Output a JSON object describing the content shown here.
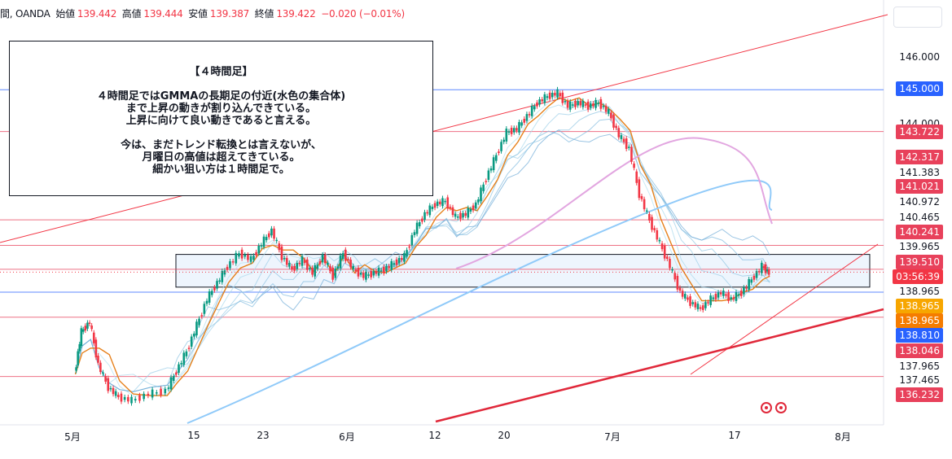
{
  "header": {
    "symbol": "間, OANDA",
    "open_label": "始値",
    "open": "139.442",
    "high_label": "高値",
    "high": "139.444",
    "low_label": "安値",
    "low": "139.387",
    "close_label": "終値",
    "close": "139.422",
    "change": "−0.020 (−0.01%)"
  },
  "annotation": {
    "title": "【４時間足】",
    "para1": [
      "４時間足ではGMMAの長期足の付近(水色の集合体)",
      "まで上昇の動きが割り込んできている。",
      "上昇に向けて良い動きであると言える。"
    ],
    "para2": [
      "今は、まだトレンド転換とは言えないが、",
      "月曜日の高値は超えてきている。",
      "細かい狙い方は１時間足で。"
    ]
  },
  "countdown": "03:56:39",
  "icons": {
    "events": "event-marker-icon"
  },
  "chart_data": {
    "type": "line",
    "series_color_up": "#089981",
    "series_color_down": "#f23645",
    "x_ticks": [
      "5月",
      "15",
      "23",
      "6月",
      "12",
      "20",
      "7月",
      "17",
      "8月"
    ],
    "y_axis_labels": [
      {
        "value": "146.000",
        "style": "plain"
      },
      {
        "value": "145.000",
        "style": "badge",
        "color": "#2962ff"
      },
      {
        "value": "144.000",
        "style": "plain"
      },
      {
        "value": "143.722",
        "style": "badge",
        "color": "#e8415b"
      },
      {
        "value": "142.317",
        "style": "badge",
        "color": "#e8415b"
      },
      {
        "value": "141.383",
        "style": "plain"
      },
      {
        "value": "141.021",
        "style": "badge",
        "color": "#e8415b"
      },
      {
        "value": "140.972",
        "style": "plain"
      },
      {
        "value": "140.465",
        "style": "plain"
      },
      {
        "value": "140.241",
        "style": "badge",
        "color": "#e8415b"
      },
      {
        "value": "139.965",
        "style": "plain"
      },
      {
        "value": "139.510",
        "style": "badge",
        "color": "#e8415b"
      },
      {
        "value": "138.965",
        "style": "plain"
      },
      {
        "value": "138.965",
        "style": "badge",
        "color": "#f7a600"
      },
      {
        "value": "138.965",
        "style": "badge",
        "color": "#f57c00"
      },
      {
        "value": "138.810",
        "style": "badge",
        "color": "#2962ff"
      },
      {
        "value": "138.046",
        "style": "badge",
        "color": "#e8415b"
      },
      {
        "value": "137.965",
        "style": "plain"
      },
      {
        "value": "137.465",
        "style": "plain"
      },
      {
        "value": "136.232",
        "style": "badge",
        "color": "#e8415b"
      }
    ],
    "horizontal_levels": [
      {
        "value": 145.0,
        "color": "#2962ff"
      },
      {
        "value": 143.722,
        "color": "#e8415b"
      },
      {
        "value": 141.021,
        "color": "#e8415b"
      },
      {
        "value": 140.241,
        "color": "#e8415b"
      },
      {
        "value": 139.51,
        "color": "#e8415b"
      },
      {
        "value": 138.81,
        "color": "#2962ff"
      },
      {
        "value": 138.046,
        "color": "#e8415b"
      },
      {
        "value": 136.232,
        "color": "#e8415b"
      }
    ],
    "zone": {
      "top": 139.965,
      "bottom": 138.965
    },
    "price_path": [
      [
        0.6,
        136.3
      ],
      [
        1.0,
        137.6
      ],
      [
        1.5,
        137.9
      ],
      [
        2.0,
        136.6
      ],
      [
        2.6,
        135.9
      ],
      [
        3.2,
        135.6
      ],
      [
        4.0,
        135.5
      ],
      [
        5.0,
        135.7
      ],
      [
        6.0,
        135.8
      ],
      [
        6.6,
        136.4
      ],
      [
        7.2,
        137.0
      ],
      [
        7.8,
        137.8
      ],
      [
        8.4,
        138.6
      ],
      [
        9.0,
        139.1
      ],
      [
        9.6,
        139.6
      ],
      [
        10.3,
        140.0
      ],
      [
        11.0,
        139.8
      ],
      [
        11.6,
        140.3
      ],
      [
        12.2,
        140.7
      ],
      [
        12.8,
        139.9
      ],
      [
        13.4,
        139.5
      ],
      [
        14.0,
        139.8
      ],
      [
        14.6,
        139.4
      ],
      [
        15.2,
        139.9
      ],
      [
        15.8,
        139.3
      ],
      [
        16.4,
        140.0
      ],
      [
        17.0,
        139.5
      ],
      [
        17.6,
        139.3
      ],
      [
        18.2,
        139.4
      ],
      [
        18.8,
        139.5
      ],
      [
        19.4,
        139.7
      ],
      [
        20.0,
        139.9
      ],
      [
        20.6,
        140.7
      ],
      [
        21.2,
        141.2
      ],
      [
        21.8,
        141.5
      ],
      [
        22.4,
        141.6
      ],
      [
        23.0,
        141.1
      ],
      [
        23.6,
        141.2
      ],
      [
        24.2,
        141.5
      ],
      [
        24.8,
        142.3
      ],
      [
        25.4,
        143.0
      ],
      [
        26.0,
        143.7
      ],
      [
        26.6,
        143.8
      ],
      [
        27.2,
        144.2
      ],
      [
        27.8,
        144.6
      ],
      [
        28.4,
        144.8
      ],
      [
        29.0,
        144.9
      ],
      [
        29.6,
        144.5
      ],
      [
        30.2,
        144.6
      ],
      [
        30.8,
        144.5
      ],
      [
        31.4,
        144.6
      ],
      [
        32.0,
        144.3
      ],
      [
        32.6,
        143.6
      ],
      [
        33.2,
        143.2
      ],
      [
        33.8,
        141.8
      ],
      [
        34.4,
        141.0
      ],
      [
        35.0,
        140.3
      ],
      [
        35.6,
        139.6
      ],
      [
        36.2,
        138.8
      ],
      [
        36.8,
        138.5
      ],
      [
        37.4,
        138.3
      ],
      [
        38.0,
        138.6
      ],
      [
        38.6,
        138.8
      ],
      [
        39.2,
        138.6
      ],
      [
        39.8,
        138.8
      ],
      [
        40.4,
        139.2
      ],
      [
        41.0,
        139.6
      ],
      [
        41.4,
        139.4
      ]
    ]
  }
}
